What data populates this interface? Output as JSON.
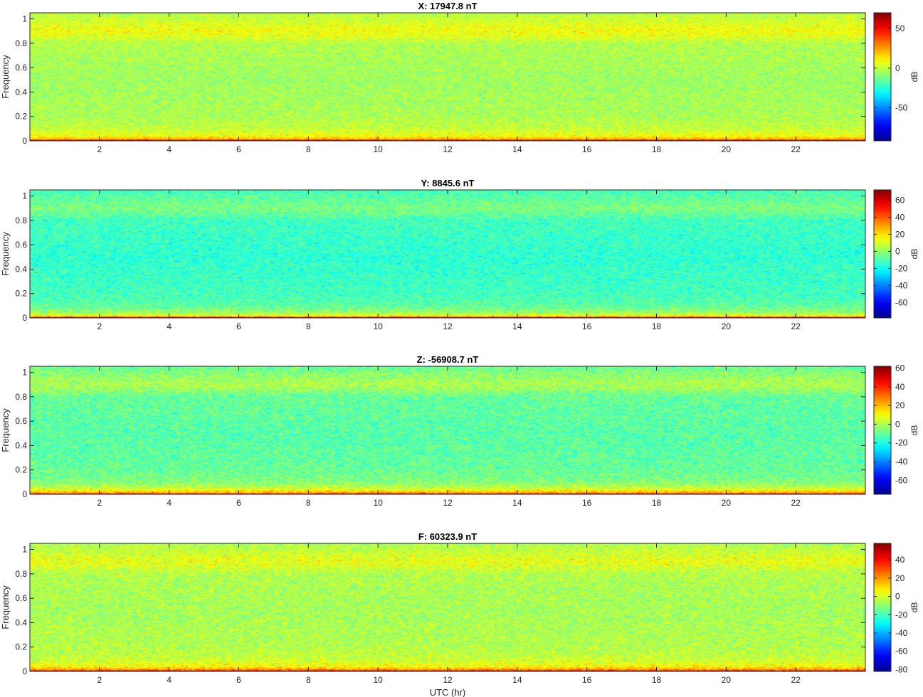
{
  "figure": {
    "xlabel_bottom": "UTC (hr)",
    "colorscale": [
      "#00008f",
      "#0000ff",
      "#0080ff",
      "#00ffff",
      "#80ff80",
      "#ffff00",
      "#ff8000",
      "#ff0000",
      "#800000"
    ]
  },
  "chart_data": [
    {
      "type": "heatmap",
      "title": "X: 17947.8 nT",
      "xlabel": "",
      "ylabel": "Frequency",
      "colorbar_label": "dB",
      "xlim": [
        0,
        24
      ],
      "ylim": [
        0,
        1.05
      ],
      "x_ticks": [
        2,
        4,
        6,
        8,
        10,
        12,
        14,
        16,
        18,
        20,
        22
      ],
      "y_ticks": [
        0,
        0.2,
        0.4,
        0.6,
        0.8,
        1
      ],
      "y_tick_labels": [
        "0",
        "0.2",
        "0.4",
        "0.6",
        "0.8",
        "1"
      ],
      "clim": [
        -92,
        70
      ],
      "colorbar_ticks": [
        -50,
        0,
        50
      ],
      "profile": {
        "frequency": [
          0,
          0.005,
          0.01,
          0.02,
          0.03,
          0.05,
          0.1,
          0.2,
          0.5,
          0.8,
          0.86,
          0.9,
          0.95,
          1.0,
          1.05
        ],
        "db": [
          68,
          55,
          30,
          18,
          12,
          6,
          0,
          -4,
          -6,
          -3,
          5,
          8,
          5,
          1,
          -2
        ]
      },
      "noise_db": 8
    },
    {
      "type": "heatmap",
      "title": "Y: 8845.6 nT",
      "xlabel": "",
      "ylabel": "Frequency",
      "colorbar_label": "dB",
      "xlim": [
        0,
        24
      ],
      "ylim": [
        0,
        1.05
      ],
      "x_ticks": [
        2,
        4,
        6,
        8,
        10,
        12,
        14,
        16,
        18,
        20,
        22
      ],
      "y_ticks": [
        0,
        0.2,
        0.4,
        0.6,
        0.8,
        1
      ],
      "y_tick_labels": [
        "0",
        "0.2",
        "0.4",
        "0.6",
        "0.8",
        "1"
      ],
      "clim": [
        -78,
        72
      ],
      "colorbar_ticks": [
        -60,
        -40,
        -20,
        0,
        20,
        40,
        60
      ],
      "profile": {
        "frequency": [
          0,
          0.005,
          0.01,
          0.02,
          0.03,
          0.05,
          0.1,
          0.2,
          0.5,
          0.8,
          0.86,
          0.9,
          0.95,
          1.0,
          1.05
        ],
        "db": [
          70,
          55,
          30,
          12,
          6,
          0,
          -8,
          -12,
          -15,
          -12,
          -6,
          -3,
          -6,
          -9,
          -12
        ]
      },
      "noise_db": 8
    },
    {
      "type": "heatmap",
      "title": "Z: -56908.7 nT",
      "xlabel": "",
      "ylabel": "Frequency",
      "colorbar_label": "dB",
      "xlim": [
        0,
        24
      ],
      "ylim": [
        0,
        1.05
      ],
      "x_ticks": [
        2,
        4,
        6,
        8,
        10,
        12,
        14,
        16,
        18,
        20,
        22
      ],
      "y_ticks": [
        0,
        0.2,
        0.4,
        0.6,
        0.8,
        1
      ],
      "y_tick_labels": [
        "0",
        "0.2",
        "0.4",
        "0.6",
        "0.8",
        "1"
      ],
      "clim": [
        -75,
        62
      ],
      "colorbar_ticks": [
        -60,
        -40,
        -20,
        0,
        20,
        40,
        60
      ],
      "profile": {
        "frequency": [
          0,
          0.005,
          0.01,
          0.02,
          0.03,
          0.05,
          0.1,
          0.2,
          0.5,
          0.8,
          0.86,
          0.9,
          0.95,
          1.0,
          1.05
        ],
        "db": [
          60,
          45,
          25,
          18,
          12,
          3,
          -6,
          -10,
          -12,
          -10,
          -3,
          0,
          -3,
          -6,
          -10
        ]
      },
      "noise_db": 8
    },
    {
      "type": "heatmap",
      "title": "F: 60323.9 nT",
      "xlabel": "UTC (hr)",
      "ylabel": "Frequency",
      "colorbar_label": "dB",
      "xlim": [
        0,
        24
      ],
      "ylim": [
        0,
        1.05
      ],
      "x_ticks": [
        2,
        4,
        6,
        8,
        10,
        12,
        14,
        16,
        18,
        20,
        22
      ],
      "y_ticks": [
        0,
        0.2,
        0.4,
        0.6,
        0.8,
        1
      ],
      "y_tick_labels": [
        "0",
        "0.2",
        "0.4",
        "0.6",
        "0.8",
        "1"
      ],
      "clim": [
        -82,
        58
      ],
      "colorbar_ticks": [
        -80,
        -60,
        -40,
        -20,
        0,
        20,
        40
      ],
      "profile": {
        "frequency": [
          0,
          0.005,
          0.01,
          0.02,
          0.03,
          0.05,
          0.1,
          0.2,
          0.5,
          0.8,
          0.86,
          0.9,
          0.95,
          1.0,
          1.05
        ],
        "db": [
          55,
          45,
          28,
          16,
          10,
          4,
          -2,
          -5,
          -7,
          -5,
          0,
          3,
          0,
          -3,
          -6
        ]
      },
      "noise_db": 8
    }
  ]
}
